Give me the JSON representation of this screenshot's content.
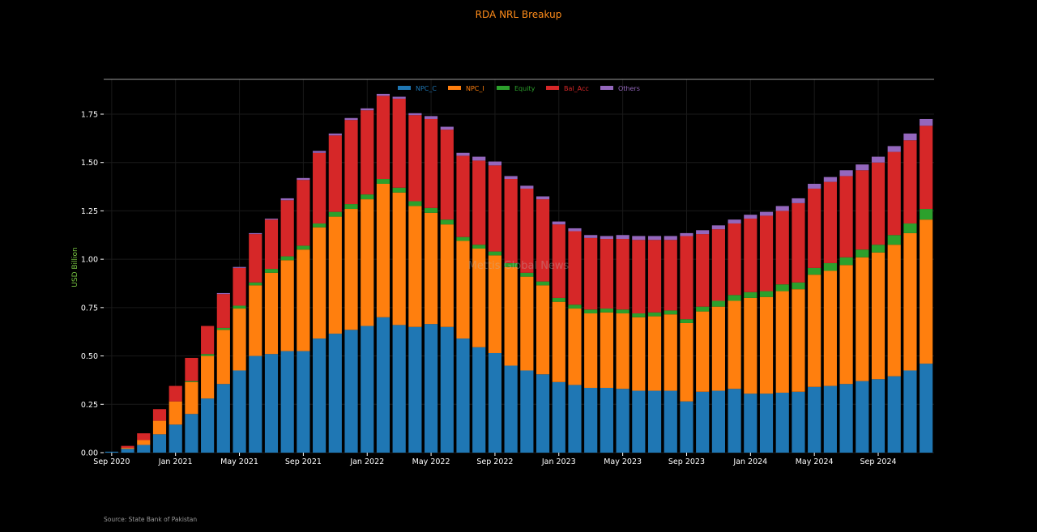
{
  "chart_data": {
    "type": "bar",
    "stacked": true,
    "title": "RDA NRL Breakup",
    "ylabel": "USD Billion",
    "xlabel": "",
    "ylim": [
      0,
      1.93
    ],
    "yticks": [
      "0.00",
      "0.25",
      "0.50",
      "0.75",
      "1.00",
      "1.25",
      "1.50",
      "1.75"
    ],
    "ytick_values": [
      0,
      0.25,
      0.5,
      0.75,
      1.0,
      1.25,
      1.5,
      1.75
    ],
    "xtick_labels": [
      {
        "index": 0,
        "label": "Sep 2020"
      },
      {
        "index": 4,
        "label": "Jan 2021"
      },
      {
        "index": 8,
        "label": "May 2021"
      },
      {
        "index": 12,
        "label": "Sep 2021"
      },
      {
        "index": 16,
        "label": "Jan 2022"
      },
      {
        "index": 20,
        "label": "May 2022"
      },
      {
        "index": 24,
        "label": "Sep 2022"
      },
      {
        "index": 28,
        "label": "Jan 2023"
      },
      {
        "index": 32,
        "label": "May 2023"
      },
      {
        "index": 36,
        "label": "Sep 2023"
      },
      {
        "index": 40,
        "label": "Jan 2024"
      },
      {
        "index": 44,
        "label": "May 2024"
      },
      {
        "index": 48,
        "label": "Sep 2024"
      }
    ],
    "grid": true,
    "legend_position": "top-center",
    "series": [
      {
        "name": "NPC_C",
        "color": "#1f77b4",
        "values": [
          0.005,
          0.02,
          0.04,
          0.095,
          0.145,
          0.2,
          0.28,
          0.355,
          0.425,
          0.5,
          0.51,
          0.525,
          0.525,
          0.59,
          0.615,
          0.635,
          0.655,
          0.7,
          0.66,
          0.65,
          0.665,
          0.65,
          0.59,
          0.545,
          0.515,
          0.45,
          0.425,
          0.405,
          0.365,
          0.35,
          0.335,
          0.335,
          0.33,
          0.32,
          0.32,
          0.32,
          0.265,
          0.315,
          0.32,
          0.33,
          0.305,
          0.305,
          0.31,
          0.315,
          0.34,
          0.345,
          0.355,
          0.37,
          0.38,
          0.395,
          0.425,
          0.46
        ]
      },
      {
        "name": "NPC_I",
        "color": "#ff7f0e",
        "values": [
          0.0,
          0.005,
          0.025,
          0.07,
          0.12,
          0.165,
          0.22,
          0.28,
          0.32,
          0.365,
          0.42,
          0.47,
          0.525,
          0.575,
          0.605,
          0.625,
          0.655,
          0.69,
          0.685,
          0.625,
          0.575,
          0.53,
          0.505,
          0.51,
          0.505,
          0.51,
          0.485,
          0.46,
          0.415,
          0.395,
          0.385,
          0.39,
          0.39,
          0.38,
          0.385,
          0.395,
          0.405,
          0.415,
          0.435,
          0.455,
          0.495,
          0.5,
          0.525,
          0.53,
          0.58,
          0.595,
          0.615,
          0.64,
          0.655,
          0.68,
          0.71,
          0.745
        ]
      },
      {
        "name": "Equity",
        "color": "#2ca02c",
        "values": [
          0.0,
          0.0,
          0.0,
          0.0,
          0.0,
          0.005,
          0.01,
          0.01,
          0.015,
          0.015,
          0.02,
          0.02,
          0.02,
          0.02,
          0.025,
          0.025,
          0.025,
          0.025,
          0.025,
          0.025,
          0.025,
          0.025,
          0.02,
          0.02,
          0.02,
          0.02,
          0.02,
          0.02,
          0.02,
          0.02,
          0.02,
          0.02,
          0.02,
          0.02,
          0.02,
          0.02,
          0.02,
          0.025,
          0.03,
          0.03,
          0.03,
          0.03,
          0.035,
          0.035,
          0.035,
          0.04,
          0.04,
          0.04,
          0.04,
          0.05,
          0.05,
          0.055
        ]
      },
      {
        "name": "Bal_Acc",
        "color": "#d62728",
        "values": [
          0.0,
          0.01,
          0.035,
          0.06,
          0.08,
          0.12,
          0.145,
          0.175,
          0.195,
          0.25,
          0.255,
          0.29,
          0.34,
          0.365,
          0.395,
          0.435,
          0.435,
          0.43,
          0.46,
          0.445,
          0.46,
          0.465,
          0.42,
          0.435,
          0.445,
          0.435,
          0.435,
          0.425,
          0.38,
          0.38,
          0.37,
          0.36,
          0.365,
          0.38,
          0.375,
          0.365,
          0.43,
          0.375,
          0.37,
          0.37,
          0.38,
          0.39,
          0.38,
          0.41,
          0.41,
          0.42,
          0.42,
          0.41,
          0.425,
          0.43,
          0.43,
          0.43
        ]
      },
      {
        "name": "Others",
        "color": "#9467bd",
        "values": [
          0.0,
          0.0,
          0.0,
          0.0,
          0.0,
          0.0,
          0.0,
          0.005,
          0.005,
          0.005,
          0.005,
          0.01,
          0.01,
          0.01,
          0.01,
          0.01,
          0.01,
          0.01,
          0.01,
          0.01,
          0.015,
          0.015,
          0.015,
          0.02,
          0.02,
          0.015,
          0.015,
          0.015,
          0.015,
          0.015,
          0.015,
          0.015,
          0.02,
          0.02,
          0.02,
          0.02,
          0.015,
          0.02,
          0.02,
          0.02,
          0.02,
          0.02,
          0.025,
          0.025,
          0.025,
          0.025,
          0.03,
          0.03,
          0.03,
          0.03,
          0.035,
          0.035
        ]
      }
    ]
  },
  "watermark": "Mettis Global News",
  "source": "Source: State Bank of Pakistan",
  "colors": {
    "background": "#000000",
    "title": "#ff8c1a",
    "ylabel": "#7ac943"
  }
}
